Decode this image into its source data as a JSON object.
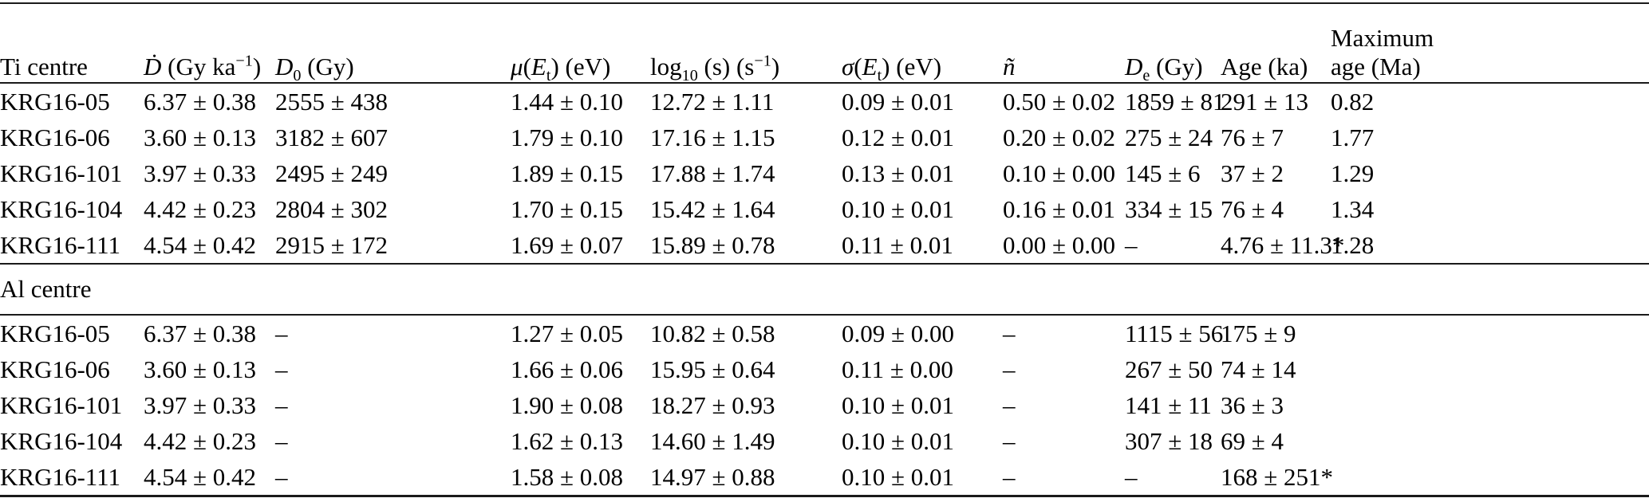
{
  "colors": {
    "background": "#ffffff",
    "text": "#000000",
    "rule": "#1a1a1a"
  },
  "table": {
    "columns": [
      {
        "id": "sample",
        "label_html": "Ti centre"
      },
      {
        "id": "dose-rate",
        "label_html": "<i>Ḋ</i> (Gy ka<sup>−1</sup>)"
      },
      {
        "id": "d0",
        "label_html": "<i>D</i><sub>0</sub> (Gy)"
      },
      {
        "id": "mu-et",
        "label_html": "<i>μ</i>(<i>E</i><sub>t</sub>) (eV)"
      },
      {
        "id": "log10-s",
        "label_html": "log<sub>10</sub> (s) (s<sup>−1</sup>)"
      },
      {
        "id": "sigma-et",
        "label_html": "<i>σ</i>(<i>E</i><sub>t</sub>) (eV)"
      },
      {
        "id": "n-tilde",
        "label_html": "<i>ñ</i>"
      },
      {
        "id": "de",
        "label_html": "<i>D</i><sub>e</sub> (Gy)"
      },
      {
        "id": "age",
        "label_html": "Age (ka)"
      },
      {
        "id": "max-age",
        "label_html": "Maximum<br>age (Ma)"
      }
    ],
    "sections": [
      {
        "label": "Ti centre",
        "label_shown_in_header": true,
        "rows": [
          [
            "KRG16-05",
            "6.37 ± 0.38",
            "2555 ± 438",
            "1.44 ± 0.10",
            "12.72 ± 1.11",
            "0.09 ± 0.01",
            "0.50 ± 0.02",
            "1859 ± 81",
            "291 ± 13",
            "0.82"
          ],
          [
            "KRG16-06",
            "3.60 ± 0.13",
            "3182 ± 607",
            "1.79 ± 0.10",
            "17.16 ± 1.15",
            "0.12 ± 0.01",
            "0.20 ± 0.02",
            "275 ± 24",
            "76 ± 7",
            "1.77"
          ],
          [
            "KRG16-101",
            "3.97 ± 0.33",
            "2495 ± 249",
            "1.89 ± 0.15",
            "17.88 ± 1.74",
            "0.13 ± 0.01",
            "0.10 ± 0.00",
            "145 ± 6",
            "37 ± 2",
            "1.29"
          ],
          [
            "KRG16-104",
            "4.42 ± 0.23",
            "2804 ± 302",
            "1.70 ± 0.15",
            "15.42 ± 1.64",
            "0.10 ± 0.01",
            "0.16 ± 0.01",
            "334 ± 15",
            "76 ± 4",
            "1.34"
          ],
          [
            "KRG16-111",
            "4.54 ± 0.42",
            "2915 ± 172",
            "1.69 ± 0.07",
            "15.89 ± 0.78",
            "0.11 ± 0.01",
            "0.00 ± 0.00",
            "–",
            "4.76 ± 11.3*",
            "1.28"
          ]
        ]
      },
      {
        "label": "Al centre",
        "label_shown_in_header": false,
        "rows": [
          [
            "KRG16-05",
            "6.37 ± 0.38",
            "–",
            "1.27 ± 0.05",
            "10.82 ± 0.58",
            "0.09 ± 0.00",
            "–",
            "1115 ± 56",
            "175 ± 9",
            ""
          ],
          [
            "KRG16-06",
            "3.60 ± 0.13",
            "–",
            "1.66 ± 0.06",
            "15.95 ± 0.64",
            "0.11 ± 0.00",
            "–",
            "267 ± 50",
            "74 ± 14",
            ""
          ],
          [
            "KRG16-101",
            "3.97 ± 0.33",
            "–",
            "1.90 ± 0.08",
            "18.27 ± 0.93",
            "0.10 ± 0.01",
            "–",
            "141 ± 11",
            "36 ± 3",
            ""
          ],
          [
            "KRG16-104",
            "4.42 ± 0.23",
            "–",
            "1.62 ± 0.13",
            "14.60 ± 1.49",
            "0.10 ± 0.01",
            "–",
            "307 ± 18",
            "69 ± 4",
            ""
          ],
          [
            "KRG16-111",
            "4.54 ± 0.42",
            "–",
            "1.58 ± 0.08",
            "14.97 ± 0.88",
            "0.10 ± 0.01",
            "–",
            "–",
            "168 ± 251*",
            ""
          ]
        ]
      }
    ]
  }
}
